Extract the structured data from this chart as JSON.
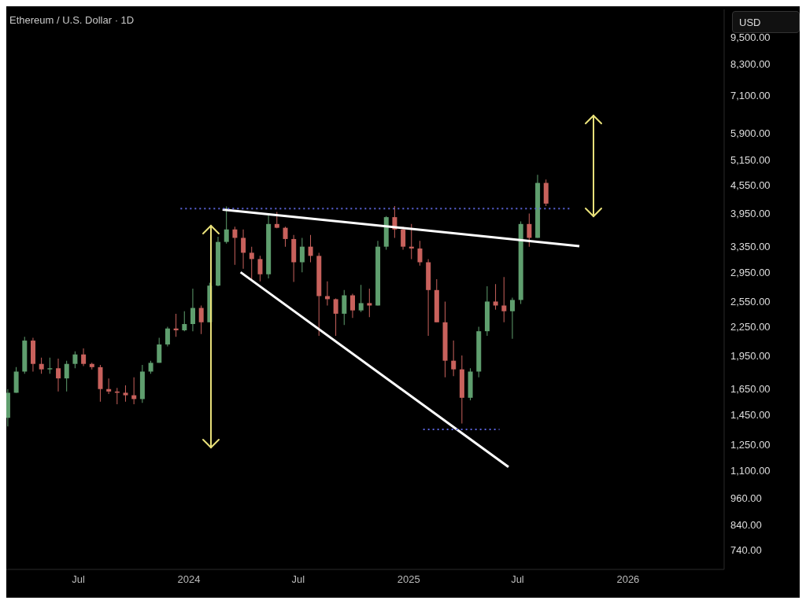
{
  "chart_data": {
    "type": "candlestick",
    "title": "Ethereum / U.S. Dollar · 1D",
    "ylabel": "USD",
    "log": "y",
    "x": [
      "2023-03-06",
      "2023-03-20",
      "2023-04-03",
      "2023-04-17",
      "2023-05-01",
      "2023-05-15",
      "2023-05-29",
      "2023-06-12",
      "2023-06-26",
      "2023-07-10",
      "2023-07-24",
      "2023-08-07",
      "2023-08-21",
      "2023-09-04",
      "2023-09-18",
      "2023-10-02",
      "2023-10-16",
      "2023-10-30",
      "2023-11-13",
      "2023-11-27",
      "2023-12-11",
      "2023-12-25",
      "2024-01-08",
      "2024-01-22",
      "2024-02-05",
      "2024-02-19",
      "2024-03-04",
      "2024-03-18",
      "2024-04-01",
      "2024-04-15",
      "2024-04-29",
      "2024-05-13",
      "2024-05-27",
      "2024-06-10",
      "2024-06-24",
      "2024-07-08",
      "2024-07-22",
      "2024-08-05",
      "2024-08-19",
      "2024-09-02",
      "2024-09-16",
      "2024-09-30",
      "2024-10-14",
      "2024-10-28",
      "2024-11-11",
      "2024-11-25",
      "2024-12-09",
      "2024-12-23",
      "2025-01-06",
      "2025-01-20",
      "2025-02-03",
      "2025-02-17",
      "2025-03-03",
      "2025-03-17",
      "2025-03-31",
      "2025-04-14",
      "2025-04-28",
      "2025-05-12",
      "2025-05-26",
      "2025-06-09",
      "2025-06-23",
      "2025-07-07",
      "2025-07-21",
      "2025-08-04",
      "2025-08-18"
    ],
    "ohlc": [
      [
        1430,
        1650,
        1370,
        1620
      ],
      [
        1620,
        1840,
        1620,
        1800
      ],
      [
        1800,
        2140,
        1780,
        2100
      ],
      [
        2100,
        2130,
        1800,
        1870
      ],
      [
        1870,
        1930,
        1780,
        1820
      ],
      [
        1820,
        1930,
        1780,
        1830
      ],
      [
        1830,
        1920,
        1630,
        1740
      ],
      [
        1740,
        1900,
        1630,
        1870
      ],
      [
        1870,
        1990,
        1830,
        1960
      ],
      [
        1960,
        2020,
        1850,
        1870
      ],
      [
        1870,
        1880,
        1820,
        1840
      ],
      [
        1840,
        1860,
        1550,
        1650
      ],
      [
        1650,
        1740,
        1610,
        1630
      ],
      [
        1630,
        1660,
        1530,
        1620
      ],
      [
        1620,
        1680,
        1550,
        1600
      ],
      [
        1600,
        1750,
        1530,
        1570
      ],
      [
        1570,
        1860,
        1540,
        1800
      ],
      [
        1800,
        1900,
        1780,
        1880
      ],
      [
        1880,
        2130,
        1880,
        2060
      ],
      [
        2060,
        2250,
        2040,
        2230
      ],
      [
        2230,
        2400,
        2140,
        2210
      ],
      [
        2210,
        2430,
        2200,
        2280
      ],
      [
        2280,
        2720,
        2200,
        2470
      ],
      [
        2470,
        2500,
        2170,
        2300
      ],
      [
        2300,
        2800,
        2300,
        2760
      ],
      [
        2760,
        3520,
        2750,
        3430
      ],
      [
        3430,
        4090,
        3400,
        3650
      ],
      [
        3650,
        3700,
        3060,
        3500
      ],
      [
        3500,
        3650,
        3000,
        3250
      ],
      [
        3250,
        3350,
        2850,
        3150
      ],
      [
        3150,
        3200,
        2820,
        2920
      ],
      [
        2920,
        3950,
        2860,
        3750
      ],
      [
        3750,
        3980,
        3670,
        3680
      ],
      [
        3680,
        3700,
        3350,
        3480
      ],
      [
        3480,
        3550,
        2810,
        3100
      ],
      [
        3100,
        3500,
        2950,
        3350
      ],
      [
        3350,
        3550,
        3100,
        3200
      ],
      [
        3200,
        3250,
        2150,
        2620
      ],
      [
        2620,
        2820,
        2500,
        2580
      ],
      [
        2580,
        2590,
        2150,
        2400
      ],
      [
        2400,
        2700,
        2270,
        2630
      ],
      [
        2630,
        2650,
        2350,
        2440
      ],
      [
        2440,
        2770,
        2420,
        2530
      ],
      [
        2530,
        2720,
        2360,
        2500
      ],
      [
        2500,
        3450,
        2500,
        3350
      ],
      [
        3350,
        3900,
        3300,
        3880
      ],
      [
        3880,
        4100,
        3500,
        3650
      ],
      [
        3650,
        3700,
        3300,
        3350
      ],
      [
        3350,
        3750,
        3150,
        3320
      ],
      [
        3320,
        3450,
        3050,
        3100
      ],
      [
        3100,
        3150,
        2150,
        2700
      ],
      [
        2700,
        2850,
        2300,
        2300
      ],
      [
        2300,
        2550,
        1750,
        1900
      ],
      [
        1900,
        2100,
        1760,
        1820
      ],
      [
        1820,
        1950,
        1390,
        1580
      ],
      [
        1580,
        1830,
        1560,
        1800
      ],
      [
        1800,
        2250,
        1750,
        2200
      ],
      [
        2200,
        2750,
        2150,
        2550
      ],
      [
        2550,
        2780,
        2450,
        2500
      ],
      [
        2500,
        2880,
        2300,
        2430
      ],
      [
        2430,
        2600,
        2120,
        2570
      ],
      [
        2570,
        3800,
        2520,
        3750
      ],
      [
        3750,
        3950,
        3350,
        3500
      ],
      [
        3500,
        4790,
        3500,
        4600
      ],
      [
        4600,
        4680,
        4100,
        4150
      ]
    ],
    "colors": [
      "#5f9e6e",
      "#5f9e6e",
      "#5f9e6e",
      "#c8615c",
      "#c8615c",
      "#5f9e6e",
      "#c8615c",
      "#5f9e6e",
      "#5f9e6e",
      "#c8615c",
      "#c8615c",
      "#c8615c",
      "#c8615c",
      "#c8615c",
      "#c8615c",
      "#c8615c",
      "#5f9e6e",
      "#5f9e6e",
      "#5f9e6e",
      "#5f9e6e",
      "#c8615c",
      "#5f9e6e",
      "#5f9e6e",
      "#c8615c",
      "#5f9e6e",
      "#5f9e6e",
      "#5f9e6e",
      "#c8615c",
      "#c8615c",
      "#c8615c",
      "#c8615c",
      "#5f9e6e",
      "#c8615c",
      "#c8615c",
      "#c8615c",
      "#5f9e6e",
      "#c8615c",
      "#c8615c",
      "#c8615c",
      "#c8615c",
      "#5f9e6e",
      "#c8615c",
      "#5f9e6e",
      "#c8615c",
      "#5f9e6e",
      "#5f9e6e",
      "#c8615c",
      "#c8615c",
      "#c8615c",
      "#c8615c",
      "#c8615c",
      "#c8615c",
      "#c8615c",
      "#c8615c",
      "#c8615c",
      "#5f9e6e",
      "#5f9e6e",
      "#5f9e6e",
      "#c8615c",
      "#c8615c",
      "#5f9e6e",
      "#5f9e6e",
      "#c8615c",
      "#5f9e6e",
      "#c8615c"
    ],
    "series": [
      {
        "type": "line",
        "color": "#ffffff",
        "line_style": "solid",
        "x": [
          "2024-02-26",
          "2025-10-12"
        ],
        "values": [
          4030,
          3360
        ]
      },
      {
        "type": "line",
        "color": "#ffffff",
        "line_style": "solid",
        "x": [
          "2024-03-27",
          "2025-06-16"
        ],
        "values": [
          2950,
          1120
        ]
      },
      {
        "type": "line",
        "color": "#5a63d8",
        "line_style": "dotted",
        "x": [
          "2023-12-18",
          "2025-09-28"
        ],
        "values": [
          4050,
          4050
        ]
      },
      {
        "type": "line",
        "color": "#5a63d8",
        "line_style": "dotted",
        "x": [
          "2025-01-25",
          "2025-06-01"
        ],
        "values": [
          1350,
          1350
        ]
      }
    ],
    "xlim": [
      "2023-03-03",
      "2026-06-10"
    ],
    "xticks": [
      {
        "value": "2023-07-01",
        "label": "Jul"
      },
      "2024",
      {
        "value": "2024-07-01",
        "label": "Jul"
      },
      "2025",
      {
        "value": "2025-07-01",
        "label": "Jul"
      },
      "2026"
    ],
    "ylim": [
      673,
      10900
    ],
    "yticks": [
      {
        "value": 740,
        "label": "740.00"
      },
      {
        "value": 840,
        "label": "840.00"
      },
      {
        "value": 960,
        "label": "960.00"
      },
      {
        "value": 1100,
        "label": "1,100.00"
      },
      {
        "value": 1250,
        "label": "1,250.00"
      },
      {
        "value": 1450,
        "label": "1,450.00"
      },
      {
        "value": 1650,
        "label": "1,650.00"
      },
      {
        "value": 1950,
        "label": "1,950.00"
      },
      {
        "value": 2250,
        "label": "2,250.00"
      },
      {
        "value": 2550,
        "label": "2,550.00"
      },
      {
        "value": 2950,
        "label": "2,950.00"
      },
      {
        "value": 3350,
        "label": "3,350.00"
      },
      {
        "value": 3950,
        "label": "3,950.00"
      },
      {
        "value": 4550,
        "label": "4,550.00"
      },
      {
        "value": 5150,
        "label": "5,150.00"
      },
      {
        "value": 5900,
        "label": "5,900.00"
      },
      {
        "value": 7100,
        "label": "7,100.00"
      },
      {
        "value": 8300,
        "label": "8,300.00"
      },
      {
        "value": 9500,
        "label": "9,500.00"
      }
    ]
  }
}
